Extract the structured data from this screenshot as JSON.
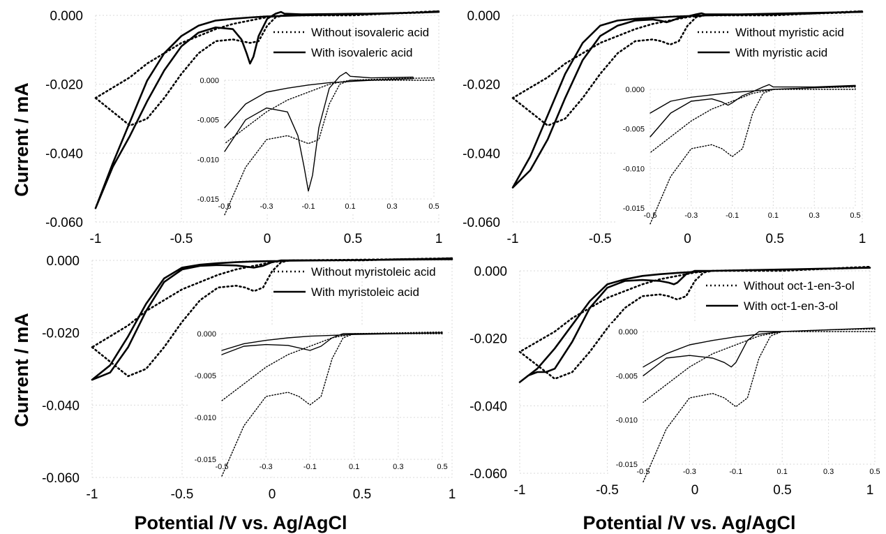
{
  "figure": {
    "ylabel_top": "Current / mA",
    "ylabel_bottom": "Current / mA",
    "xlabel_left": "Potential /V vs. Ag/AgCl",
    "xlabel_right": "Potential /V vs. Ag/AgCl",
    "line_color": "#000000",
    "grid_color": "#d9d9d9"
  },
  "chart_data": [
    {
      "type": "line",
      "panel": "top-left",
      "xlim": [
        -1,
        1
      ],
      "ylim": [
        -0.06,
        0.0
      ],
      "xticks": [
        "-1",
        "-0.5",
        "0",
        "0.5",
        "1"
      ],
      "yticks": [
        "0.000",
        "-0.020",
        "-0.040",
        "-0.060"
      ],
      "grid": true,
      "legend_position": "top-right",
      "series": [
        {
          "name": "Without isovaleric acid",
          "style": "dotted",
          "x": [
            -1.0,
            -0.9,
            -0.8,
            -0.7,
            -0.6,
            -0.5,
            -0.4,
            -0.3,
            -0.2,
            -0.15,
            -0.1,
            -0.05,
            0.0,
            0.05,
            0.1,
            0.3,
            0.5,
            0.7,
            0.9,
            1.0,
            0.9,
            0.7,
            0.5,
            0.3,
            0.1,
            0.0,
            -0.1,
            -0.2,
            -0.3,
            -0.4,
            -0.5,
            -0.6,
            -0.7,
            -0.8,
            -0.9,
            -1.0
          ],
          "y": [
            -0.024,
            -0.028,
            -0.032,
            -0.03,
            -0.024,
            -0.017,
            -0.011,
            -0.0075,
            -0.007,
            -0.0075,
            -0.008,
            -0.0075,
            -0.003,
            -0.0005,
            0.0,
            0.0,
            0.0,
            0.0005,
            0.001,
            0.0012,
            0.0008,
            0.0005,
            0.0003,
            0.0002,
            0.0,
            -0.0005,
            -0.0015,
            -0.0025,
            -0.004,
            -0.006,
            -0.008,
            -0.011,
            -0.014,
            -0.018,
            -0.021,
            -0.024
          ]
        },
        {
          "name": "With isovaleric acid",
          "style": "solid",
          "x": [
            -1.0,
            -0.9,
            -0.8,
            -0.7,
            -0.6,
            -0.5,
            -0.4,
            -0.3,
            -0.2,
            -0.15,
            -0.12,
            -0.1,
            -0.08,
            -0.05,
            0.0,
            0.05,
            0.08,
            0.1,
            0.2,
            0.4,
            0.6,
            0.8,
            1.0,
            0.8,
            0.6,
            0.4,
            0.2,
            0.0,
            -0.1,
            -0.2,
            -0.3,
            -0.4,
            -0.5,
            -0.6,
            -0.7,
            -0.8,
            -0.9,
            -1.0
          ],
          "y": [
            -0.056,
            -0.044,
            -0.035,
            -0.025,
            -0.016,
            -0.009,
            -0.005,
            -0.0035,
            -0.004,
            -0.007,
            -0.011,
            -0.014,
            -0.012,
            -0.006,
            -0.001,
            0.0005,
            0.001,
            0.0005,
            0.0003,
            0.0004,
            0.0005,
            0.0007,
            0.001,
            0.0007,
            0.0005,
            0.0002,
            0.0,
            -0.0003,
            -0.0006,
            -0.001,
            -0.0015,
            -0.003,
            -0.006,
            -0.011,
            -0.019,
            -0.031,
            -0.043,
            -0.056
          ]
        }
      ],
      "inset": {
        "xlim": [
          -0.5,
          0.5
        ],
        "ylim": [
          -0.015,
          0.0
        ],
        "xticks": [
          "-0.5",
          "-0.3",
          "-0.1",
          "0.1",
          "0.3",
          "0.5"
        ],
        "yticks": [
          "0.000",
          "-0.005",
          "-0.010",
          "-0.015"
        ]
      }
    },
    {
      "type": "line",
      "panel": "top-right",
      "xlim": [
        -1,
        1
      ],
      "ylim": [
        -0.06,
        0.0
      ],
      "xticks": [
        "-1",
        "-0.5",
        "0",
        "0.5",
        "1"
      ],
      "yticks": [
        "0.000",
        "-0.020",
        "-0.040",
        "-0.060"
      ],
      "grid": true,
      "legend_position": "top-right",
      "series": [
        {
          "name": "Without myristic acid",
          "style": "dotted",
          "x": [
            -1.0,
            -0.9,
            -0.8,
            -0.7,
            -0.6,
            -0.5,
            -0.4,
            -0.3,
            -0.2,
            -0.15,
            -0.1,
            -0.05,
            0.0,
            0.05,
            0.1,
            0.3,
            0.5,
            0.7,
            0.9,
            1.0,
            0.9,
            0.7,
            0.5,
            0.3,
            0.1,
            0.0,
            -0.1,
            -0.2,
            -0.3,
            -0.4,
            -0.5,
            -0.6,
            -0.7,
            -0.8,
            -0.9,
            -1.0
          ],
          "y": [
            -0.024,
            -0.028,
            -0.032,
            -0.03,
            -0.024,
            -0.017,
            -0.011,
            -0.0075,
            -0.007,
            -0.0075,
            -0.0085,
            -0.0075,
            -0.003,
            -0.0005,
            0.0,
            0.0,
            0.0,
            0.0005,
            0.001,
            0.0012,
            0.0008,
            0.0005,
            0.0003,
            0.0002,
            0.0,
            -0.0005,
            -0.0015,
            -0.0025,
            -0.004,
            -0.006,
            -0.008,
            -0.011,
            -0.014,
            -0.018,
            -0.021,
            -0.024
          ]
        },
        {
          "name": "With myristic acid",
          "style": "solid",
          "x": [
            -1.0,
            -0.9,
            -0.8,
            -0.7,
            -0.6,
            -0.5,
            -0.4,
            -0.3,
            -0.2,
            -0.15,
            -0.12,
            -0.1,
            -0.05,
            0.0,
            0.05,
            0.08,
            0.1,
            0.3,
            0.5,
            0.7,
            1.0,
            0.7,
            0.5,
            0.3,
            0.1,
            0.0,
            -0.1,
            -0.2,
            -0.3,
            -0.4,
            -0.5,
            -0.6,
            -0.7,
            -0.8,
            -0.9,
            -1.0
          ],
          "y": [
            -0.05,
            -0.045,
            -0.036,
            -0.024,
            -0.013,
            -0.006,
            -0.003,
            -0.0015,
            -0.0012,
            -0.0016,
            -0.002,
            -0.0017,
            -0.0008,
            -0.0003,
            0.0003,
            0.0006,
            0.0003,
            0.0003,
            0.0005,
            0.0007,
            0.001,
            0.0007,
            0.0004,
            0.0002,
            0.0,
            -0.0002,
            -0.0004,
            -0.0007,
            -0.001,
            -0.0015,
            -0.003,
            -0.008,
            -0.017,
            -0.029,
            -0.041,
            -0.05
          ]
        }
      ],
      "inset": {
        "xlim": [
          -0.5,
          0.5
        ],
        "ylim": [
          -0.015,
          0.0
        ],
        "xticks": [
          "-0.5",
          "-0.3",
          "-0.1",
          "0.1",
          "0.3",
          "0.5"
        ],
        "yticks": [
          "0.000",
          "-0.005",
          "-0.010",
          "-0.015"
        ]
      }
    },
    {
      "type": "line",
      "panel": "bottom-left",
      "xlim": [
        -1,
        1
      ],
      "ylim": [
        -0.06,
        0.0
      ],
      "xticks": [
        "-1",
        "-0.5",
        "0",
        "0.5",
        "1"
      ],
      "yticks": [
        "0.000",
        "-0.020",
        "-0.040",
        "-0.060"
      ],
      "grid": true,
      "legend_position": "top-right",
      "series": [
        {
          "name": "Without myristoleic acid",
          "style": "dotted",
          "x": [
            -1.0,
            -0.9,
            -0.8,
            -0.7,
            -0.6,
            -0.5,
            -0.4,
            -0.3,
            -0.2,
            -0.15,
            -0.1,
            -0.05,
            0.0,
            0.05,
            0.1,
            0.3,
            0.5,
            0.7,
            0.9,
            1.0,
            0.9,
            0.7,
            0.5,
            0.3,
            0.1,
            0.0,
            -0.1,
            -0.2,
            -0.3,
            -0.4,
            -0.5,
            -0.6,
            -0.7,
            -0.8,
            -0.9,
            -1.0
          ],
          "y": [
            -0.024,
            -0.028,
            -0.032,
            -0.03,
            -0.024,
            -0.017,
            -0.011,
            -0.0075,
            -0.007,
            -0.0075,
            -0.0085,
            -0.0075,
            -0.003,
            -0.0005,
            0.0,
            0.0,
            0.0,
            0.0003,
            0.0005,
            0.0006,
            0.0004,
            0.0003,
            0.0002,
            0.0001,
            0.0,
            -0.0005,
            -0.0015,
            -0.0025,
            -0.004,
            -0.006,
            -0.008,
            -0.011,
            -0.014,
            -0.018,
            -0.021,
            -0.024
          ]
        },
        {
          "name": "With myristoleic acid",
          "style": "solid",
          "x": [
            -1.0,
            -0.95,
            -0.9,
            -0.8,
            -0.7,
            -0.6,
            -0.5,
            -0.4,
            -0.3,
            -0.2,
            -0.1,
            -0.05,
            0.0,
            0.05,
            0.1,
            0.3,
            0.5,
            0.7,
            1.0,
            0.7,
            0.5,
            0.3,
            0.1,
            0.0,
            -0.1,
            -0.2,
            -0.3,
            -0.4,
            -0.5,
            -0.6,
            -0.7,
            -0.8,
            -0.9,
            -1.0
          ],
          "y": [
            -0.033,
            -0.032,
            -0.031,
            -0.024,
            -0.014,
            -0.006,
            -0.0025,
            -0.0015,
            -0.0013,
            -0.0014,
            -0.002,
            -0.0015,
            -0.0005,
            0.0,
            0.0,
            0.0,
            0.0001,
            0.0002,
            0.0003,
            0.0002,
            0.0001,
            0.0,
            -0.0001,
            -0.0002,
            -0.0003,
            -0.0005,
            -0.0008,
            -0.0012,
            -0.002,
            -0.005,
            -0.012,
            -0.021,
            -0.029,
            -0.033
          ]
        }
      ],
      "inset": {
        "xlim": [
          -0.5,
          0.5
        ],
        "ylim": [
          -0.015,
          0.0
        ],
        "xticks": [
          "-0.5",
          "-0.3",
          "-0.1",
          "0.1",
          "0.3",
          "0.5"
        ],
        "yticks": [
          "0.000",
          "-0.005",
          "-0.010",
          "-0.015"
        ]
      }
    },
    {
      "type": "line",
      "panel": "bottom-right",
      "xlim": [
        -1,
        1
      ],
      "ylim": [
        -0.06,
        0.0
      ],
      "xticks": [
        "-1",
        "-0.5",
        "0",
        "0.5",
        "1"
      ],
      "yticks": [
        "0.000",
        "-0.020",
        "-0.040",
        "-0.060"
      ],
      "grid": true,
      "legend_position": "top-right",
      "series": [
        {
          "name": "Without oct-1-en-3-ol",
          "style": "dotted",
          "x": [
            -1.0,
            -0.9,
            -0.8,
            -0.7,
            -0.6,
            -0.5,
            -0.4,
            -0.3,
            -0.2,
            -0.15,
            -0.1,
            -0.05,
            0.0,
            0.05,
            0.1,
            0.3,
            0.5,
            0.7,
            0.9,
            1.0,
            0.9,
            0.7,
            0.5,
            0.3,
            0.1,
            0.0,
            -0.1,
            -0.2,
            -0.3,
            -0.4,
            -0.5,
            -0.6,
            -0.7,
            -0.8,
            -0.9,
            -1.0
          ],
          "y": [
            -0.024,
            -0.028,
            -0.032,
            -0.03,
            -0.024,
            -0.017,
            -0.011,
            -0.0075,
            -0.007,
            -0.0075,
            -0.0085,
            -0.0075,
            -0.003,
            -0.0005,
            0.0,
            0.0,
            0.0,
            0.0005,
            0.001,
            0.0012,
            0.0008,
            0.0005,
            0.0003,
            0.0002,
            0.0,
            -0.0005,
            -0.0015,
            -0.0025,
            -0.004,
            -0.006,
            -0.008,
            -0.011,
            -0.014,
            -0.018,
            -0.021,
            -0.024
          ]
        },
        {
          "name": "With oct-1-en-3-ol",
          "style": "solid",
          "x": [
            -1.0,
            -0.95,
            -0.9,
            -0.85,
            -0.8,
            -0.7,
            -0.6,
            -0.5,
            -0.4,
            -0.3,
            -0.2,
            -0.15,
            -0.12,
            -0.1,
            -0.05,
            0.0,
            0.05,
            0.1,
            0.3,
            0.5,
            0.7,
            1.0,
            0.7,
            0.5,
            0.3,
            0.1,
            0.0,
            -0.1,
            -0.2,
            -0.3,
            -0.4,
            -0.5,
            -0.6,
            -0.7,
            -0.8,
            -0.9,
            -1.0
          ],
          "y": [
            -0.033,
            -0.031,
            -0.03,
            -0.03,
            -0.029,
            -0.021,
            -0.011,
            -0.005,
            -0.003,
            -0.0027,
            -0.003,
            -0.0035,
            -0.004,
            -0.0035,
            -0.001,
            0.0,
            0.0,
            0.0,
            0.0002,
            0.0004,
            0.0006,
            0.0009,
            0.0006,
            0.0004,
            0.0002,
            0.0,
            -0.0003,
            -0.0006,
            -0.001,
            -0.0015,
            -0.0025,
            -0.004,
            -0.009,
            -0.016,
            -0.023,
            -0.029,
            -0.033
          ]
        }
      ],
      "inset": {
        "xlim": [
          -0.5,
          0.5
        ],
        "ylim": [
          -0.015,
          0.0
        ],
        "xticks": [
          "-0.5",
          "-0.3",
          "-0.1",
          "0.1",
          "0.3",
          "0.5"
        ],
        "yticks": [
          "0.000",
          "-0.005",
          "-0.010",
          "-0.015"
        ]
      }
    }
  ]
}
